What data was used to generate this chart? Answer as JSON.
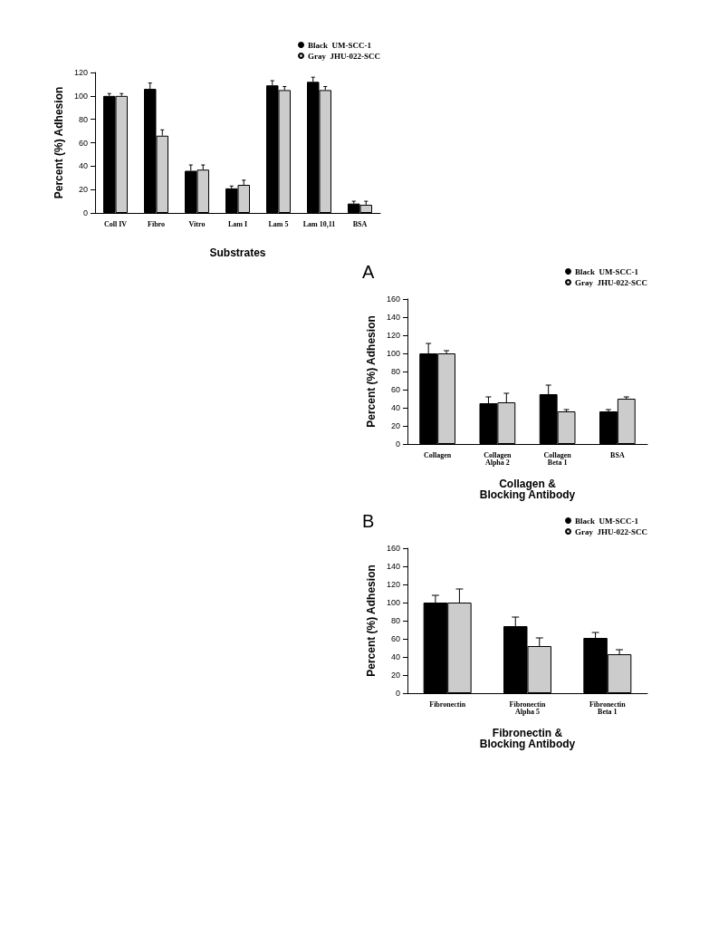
{
  "chart_data": [
    {
      "type": "bar",
      "xlabel": "Substrates",
      "ylabel": "Percent (%) Adhesion",
      "categories": [
        "Coll IV",
        "Fibro",
        "Vitro",
        "Lam I",
        "Lam 5",
        "Lam 10,11",
        "BSA"
      ],
      "series": [
        {
          "name": "Black  UM-SCC-1",
          "color": "#000000",
          "values": [
            100,
            106,
            36,
            21,
            109,
            112,
            8
          ],
          "errors": [
            [
              100,
              102
            ],
            [
              106,
              111
            ],
            [
              36,
              41
            ],
            [
              21,
              23
            ],
            [
              109,
              113
            ],
            [
              112,
              116
            ],
            [
              8,
              10
            ]
          ]
        },
        {
          "name": "Gray  JHU-022-SCC",
          "color": "#cccccc",
          "values": [
            100,
            66,
            37,
            24,
            105,
            105,
            7
          ],
          "errors": [
            [
              100,
              102
            ],
            [
              66,
              71
            ],
            [
              37,
              41
            ],
            [
              24,
              28
            ],
            [
              105,
              108
            ],
            [
              105,
              108
            ],
            [
              7,
              10
            ]
          ]
        }
      ],
      "ylim": [
        0,
        120
      ],
      "yticks": [
        0,
        20,
        40,
        60,
        80,
        100,
        120
      ],
      "grid": false,
      "legend": "top right"
    },
    {
      "type": "bar",
      "title": "A",
      "xlabel": "Collagen &\nBlocking Antibody",
      "ylabel": "Percent (%) Adhesion",
      "categories": [
        "Collagen",
        "Collagen\nAlpha 2",
        "Collagen\nBeta 1",
        "BSA"
      ],
      "series": [
        {
          "name": "Black  UM-SCC-1",
          "color": "#000000",
          "values": [
            100,
            45,
            55,
            36
          ],
          "errors": [
            [
              100,
              111
            ],
            [
              45,
              52
            ],
            [
              55,
              65
            ],
            [
              36,
              38
            ]
          ]
        },
        {
          "name": "Gray  JHU-022-SCC",
          "color": "#cccccc",
          "values": [
            100,
            46,
            36,
            50
          ],
          "errors": [
            [
              100,
              103
            ],
            [
              46,
              56
            ],
            [
              36,
              38
            ],
            [
              50,
              52
            ]
          ]
        }
      ],
      "ylim": [
        0,
        160
      ],
      "yticks": [
        0,
        20,
        40,
        60,
        80,
        100,
        120,
        140,
        160
      ],
      "grid": false,
      "legend": "top right"
    },
    {
      "type": "bar",
      "title": "B",
      "xlabel": "Fibronectin &\nBlocking Antibody",
      "ylabel": "Percent (%) Adhesion",
      "categories": [
        "Fibronectin",
        "Fibronectin\nAlpha 5",
        "Fibronectin\nBeta 1"
      ],
      "series": [
        {
          "name": "Black  UM-SCC-1",
          "color": "#000000",
          "values": [
            100,
            74,
            61
          ],
          "errors": [
            [
              100,
              108
            ],
            [
              74,
              84
            ],
            [
              61,
              67
            ]
          ]
        },
        {
          "name": "Gray  JHU-022-SCC",
          "color": "#cccccc",
          "values": [
            100,
            52,
            43
          ],
          "errors": [
            [
              100,
              115
            ],
            [
              52,
              61
            ],
            [
              43,
              48
            ]
          ]
        }
      ],
      "ylim": [
        0,
        160
      ],
      "yticks": [
        0,
        20,
        40,
        60,
        80,
        100,
        120,
        140,
        160
      ],
      "grid": false,
      "legend": "top right"
    }
  ]
}
